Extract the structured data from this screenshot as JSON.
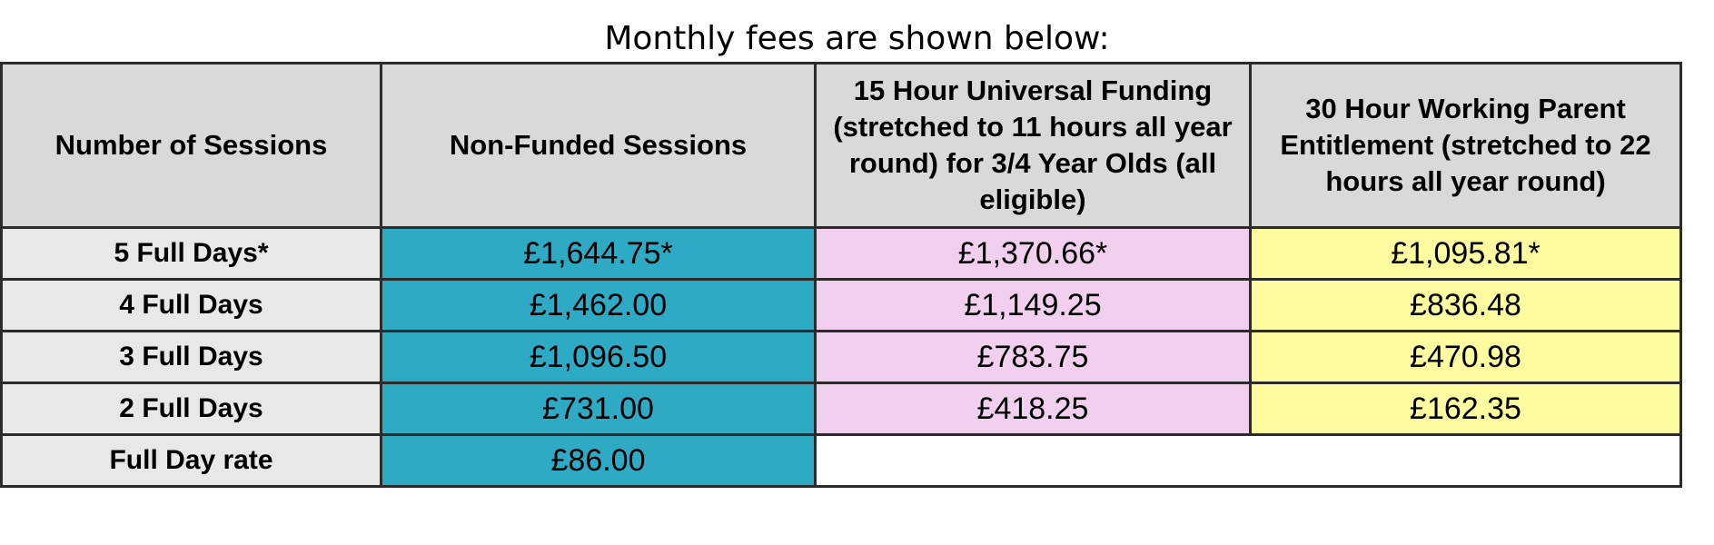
{
  "caption": "Monthly fees are shown below:",
  "table": {
    "headers": [
      "Number of Sessions",
      "Non-Funded Sessions",
      "15 Hour Universal Funding (stretched to 11 hours all year round) for 3/4 Year Olds (all eligible)",
      "30 Hour Working Parent Entitlement (stretched to 22 hours all year round)"
    ],
    "rows": [
      {
        "label": "5 Full Days*",
        "non_funded": "£1,644.75*",
        "universal_15": "£1,370.66*",
        "working_30": "£1,095.81*"
      },
      {
        "label": "4 Full Days",
        "non_funded": "£1,462.00",
        "universal_15": "£1,149.25",
        "working_30": "£836.48"
      },
      {
        "label": "3 Full Days",
        "non_funded": "£1,096.50",
        "universal_15": "£783.75",
        "working_30": "£470.98"
      },
      {
        "label": "2 Full Days",
        "non_funded": "£731.00",
        "universal_15": "£418.25",
        "working_30": "£162.35"
      },
      {
        "label": "Full Day rate",
        "non_funded": "£86.00",
        "universal_15": "",
        "working_30": ""
      }
    ]
  },
  "colors": {
    "header_bg": "#d9d9d9",
    "label_bg": "#e9e8e8",
    "non_funded_bg": "#2faac4",
    "universal_bg": "#f0d0ee",
    "working_bg": "#fdfca0"
  }
}
